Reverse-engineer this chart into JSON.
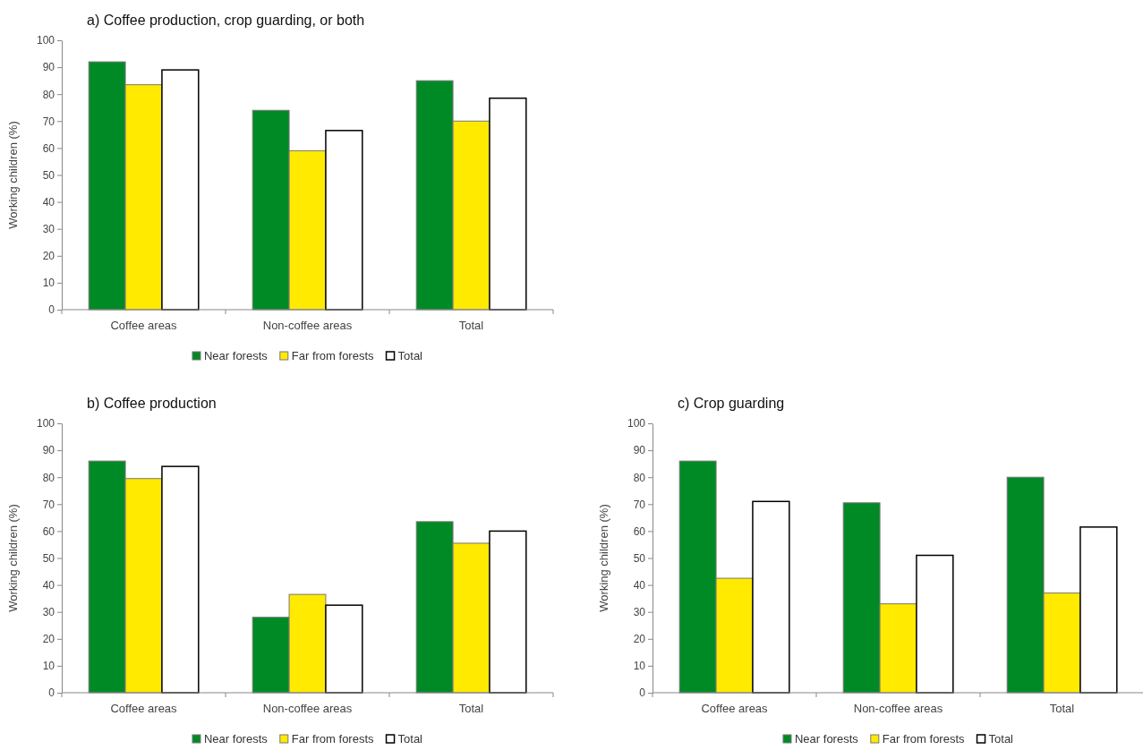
{
  "chart_data": [
    {
      "type": "bar",
      "title": "a) Coffee production, crop guarding, or both",
      "ylabel": "Working children (%)",
      "categories": [
        "Coffee areas",
        "Non-coffee areas",
        "Total"
      ],
      "series": [
        {
          "name": "Near forests",
          "color": "#008a25",
          "values": [
            92,
            74,
            85
          ]
        },
        {
          "name": "Far from forests",
          "color": "#ffea00",
          "values": [
            83.5,
            59,
            70
          ]
        },
        {
          "name": "Total",
          "color": "#ffffff",
          "values": [
            89,
            66.5,
            78.5
          ]
        }
      ],
      "ylim": [
        0,
        100
      ],
      "yticks": [
        0,
        10,
        20,
        30,
        40,
        50,
        60,
        70,
        80,
        90,
        100
      ],
      "legend": "bottom"
    },
    {
      "type": "bar",
      "title": "b) Coffee production",
      "ylabel": "Working children (%)",
      "categories": [
        "Coffee areas",
        "Non-coffee areas",
        "Total"
      ],
      "series": [
        {
          "name": "Near forests",
          "color": "#008a25",
          "values": [
            86,
            28,
            63.5
          ]
        },
        {
          "name": "Far from forests",
          "color": "#ffea00",
          "values": [
            79.5,
            36.5,
            55.5
          ]
        },
        {
          "name": "Total",
          "color": "#ffffff",
          "values": [
            84,
            32.5,
            60
          ]
        }
      ],
      "ylim": [
        0,
        100
      ],
      "yticks": [
        0,
        10,
        20,
        30,
        40,
        50,
        60,
        70,
        80,
        90,
        100
      ],
      "legend": "bottom"
    },
    {
      "type": "bar",
      "title": "c) Crop guarding",
      "ylabel": "Working children (%)",
      "categories": [
        "Coffee areas",
        "Non-coffee areas",
        "Total"
      ],
      "series": [
        {
          "name": "Near forests",
          "color": "#008a25",
          "values": [
            86,
            70.5,
            80
          ]
        },
        {
          "name": "Far from forests",
          "color": "#ffea00",
          "values": [
            42.5,
            33,
            37
          ]
        },
        {
          "name": "Total",
          "color": "#ffffff",
          "values": [
            71,
            51,
            61.5
          ]
        }
      ],
      "ylim": [
        0,
        100
      ],
      "yticks": [
        0,
        10,
        20,
        30,
        40,
        50,
        60,
        70,
        80,
        90,
        100
      ],
      "legend": "bottom"
    }
  ]
}
